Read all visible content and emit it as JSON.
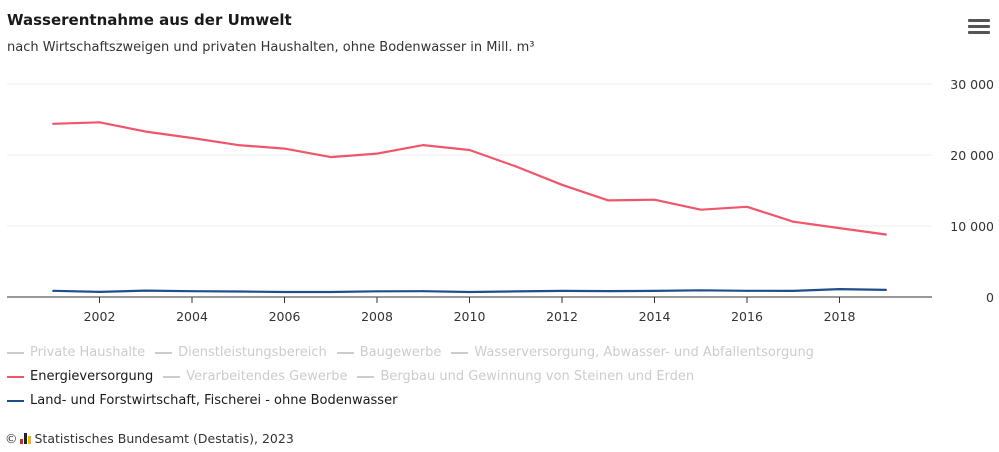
{
  "header": {
    "title": "Wasserentnahme aus der Umwelt",
    "subtitle": "nach Wirtschaftszweigen und privaten Haushalten, ohne Bodenwasser in Mill. m³",
    "menu_icon": "hamburger-menu-icon"
  },
  "chart_data": {
    "type": "line",
    "x": [
      2001,
      2002,
      2003,
      2004,
      2005,
      2006,
      2007,
      2008,
      2009,
      2010,
      2011,
      2012,
      2013,
      2014,
      2015,
      2016,
      2017,
      2018,
      2019
    ],
    "x_ticks": [
      2002,
      2004,
      2006,
      2008,
      2010,
      2012,
      2014,
      2016,
      2018
    ],
    "ylim": [
      0,
      30000
    ],
    "y_ticks": [
      0,
      10000,
      20000,
      30000
    ],
    "y_tick_labels": [
      "0",
      "10 000",
      "20 000",
      "30 000"
    ],
    "y_axis_position": "right",
    "grid": true,
    "series": [
      {
        "name": "Energieversorgung",
        "color": "#f0566b",
        "values": [
          24400,
          24600,
          23300,
          22400,
          21400,
          20900,
          19700,
          20200,
          21400,
          20700,
          18400,
          15800,
          13600,
          13700,
          12300,
          12700,
          10600,
          9700,
          8800
        ]
      },
      {
        "name": "Land- und Forstwirtschaft, Fischerei - ohne Bodenwasser",
        "color": "#1f4e8c",
        "values": [
          870,
          720,
          900,
          820,
          770,
          700,
          710,
          800,
          820,
          700,
          790,
          860,
          830,
          860,
          940,
          870,
          860,
          1110,
          1000
        ]
      }
    ]
  },
  "legend": {
    "placement": "bottom",
    "items": [
      {
        "label": "Private Haushalte",
        "color": "#cccccc",
        "hidden": true
      },
      {
        "label": "Dienstleistungsbereich",
        "color": "#cccccc",
        "hidden": true
      },
      {
        "label": "Baugewerbe",
        "color": "#cccccc",
        "hidden": true
      },
      {
        "label": "Wasserversorgung, Abwasser- und Abfallentsorgung",
        "color": "#cccccc",
        "hidden": true
      },
      {
        "label": "Energieversorgung",
        "color": "#f0566b",
        "hidden": false,
        "break_before": true
      },
      {
        "label": "Verarbeitendes Gewerbe",
        "color": "#cccccc",
        "hidden": true
      },
      {
        "label": "Bergbau und Gewinnung von Steinen und Erden",
        "color": "#cccccc",
        "hidden": true
      },
      {
        "label": "Land- und Forstwirtschaft, Fischerei - ohne Bodenwasser",
        "color": "#1f4e8c",
        "hidden": false,
        "break_before": true
      }
    ]
  },
  "credits": {
    "copyright": "©",
    "text": "Statistisches Bundesamt (Destatis), 2023",
    "logo_icon": "destatis-logo-icon"
  }
}
